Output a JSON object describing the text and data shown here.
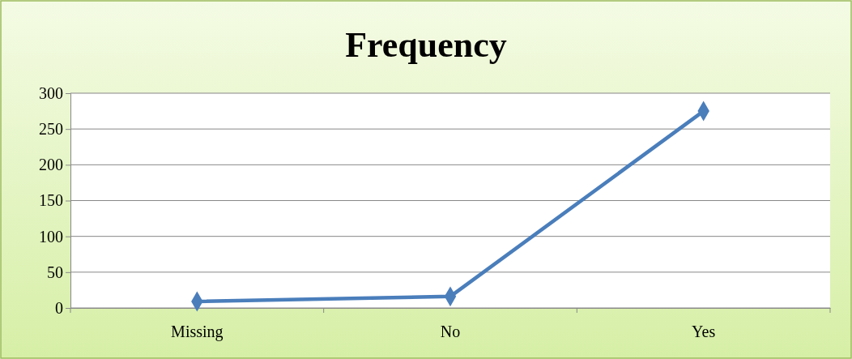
{
  "chart_data": {
    "type": "line",
    "title": "Frequency",
    "categories": [
      "Missing",
      "No",
      "Yes"
    ],
    "series": [
      {
        "color": "#4a7ebb",
        "values": [
          9,
          16,
          275
        ]
      }
    ],
    "ylim": [
      0,
      300
    ],
    "yticks": [
      0,
      50,
      100,
      150,
      200,
      250,
      300
    ],
    "grid": "y",
    "marker": "diamond",
    "line_style": "solid",
    "legend": false
  }
}
